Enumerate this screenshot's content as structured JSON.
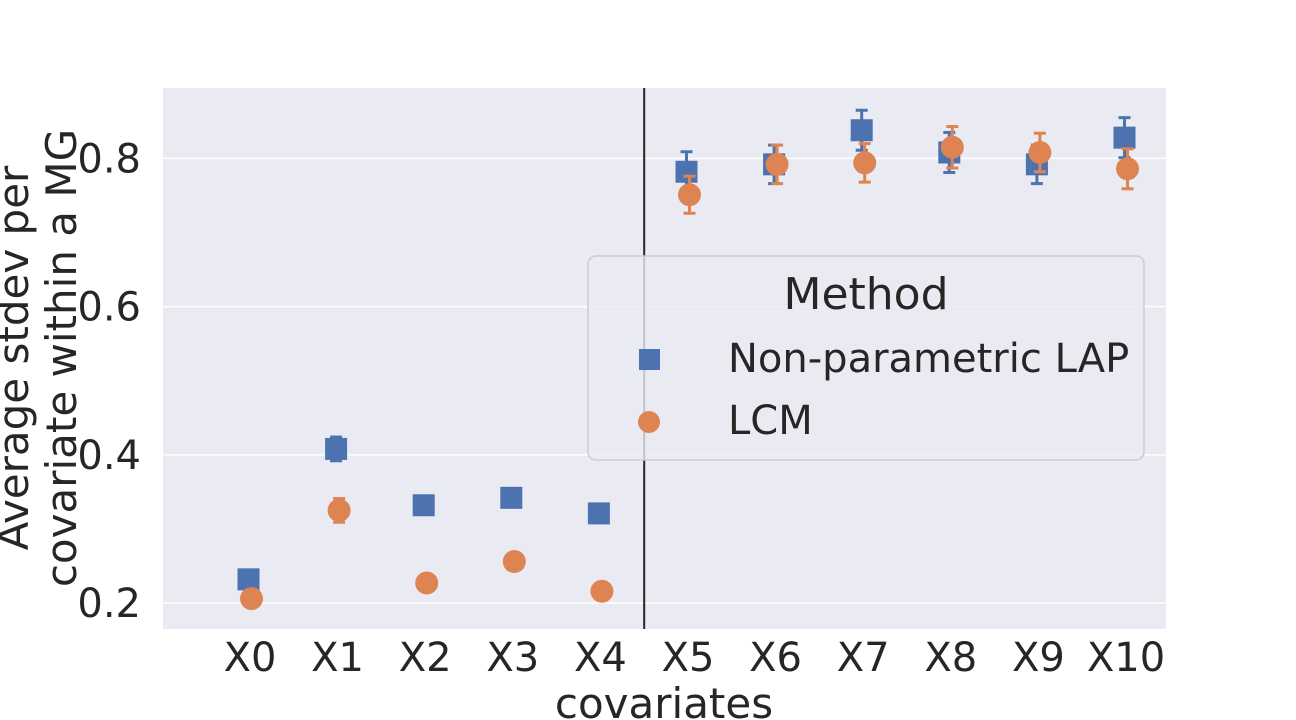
{
  "chart_data": {
    "type": "scatter",
    "title": "",
    "xlabel": "covariates",
    "ylabel_lines": [
      "Average stdev per",
      "covariate within a MG"
    ],
    "categories": [
      "X0",
      "X1",
      "X2",
      "X3",
      "X4",
      "X5",
      "X6",
      "X7",
      "X8",
      "X9",
      "X10"
    ],
    "ylim": [
      0.165,
      0.895
    ],
    "yticks": [
      0.2,
      0.4,
      0.6,
      0.8
    ],
    "ytick_labels": [
      "0.2",
      "0.4",
      "0.6",
      "0.8"
    ],
    "grid": true,
    "divider_after_category": "X4",
    "legend": {
      "title": "Method",
      "placement": "center-right"
    },
    "series": [
      {
        "name": "Non-parametric LAP",
        "marker": "square",
        "color": "#4c72b0",
        "values": [
          0.232,
          0.408,
          0.332,
          0.342,
          0.321,
          0.782,
          0.792,
          0.838,
          0.808,
          0.792,
          0.828
        ],
        "err": [
          0.004,
          0.016,
          0.01,
          0.008,
          0.008,
          0.027,
          0.026,
          0.027,
          0.027,
          0.026,
          0.027
        ]
      },
      {
        "name": "LCM",
        "marker": "circle",
        "color": "#dd8452",
        "values": [
          0.206,
          0.325,
          0.227,
          0.256,
          0.216,
          0.751,
          0.792,
          0.794,
          0.815,
          0.808,
          0.786
        ],
        "err": [
          0.004,
          0.016,
          0.004,
          0.004,
          0.004,
          0.025,
          0.026,
          0.026,
          0.028,
          0.026,
          0.027
        ]
      }
    ]
  }
}
